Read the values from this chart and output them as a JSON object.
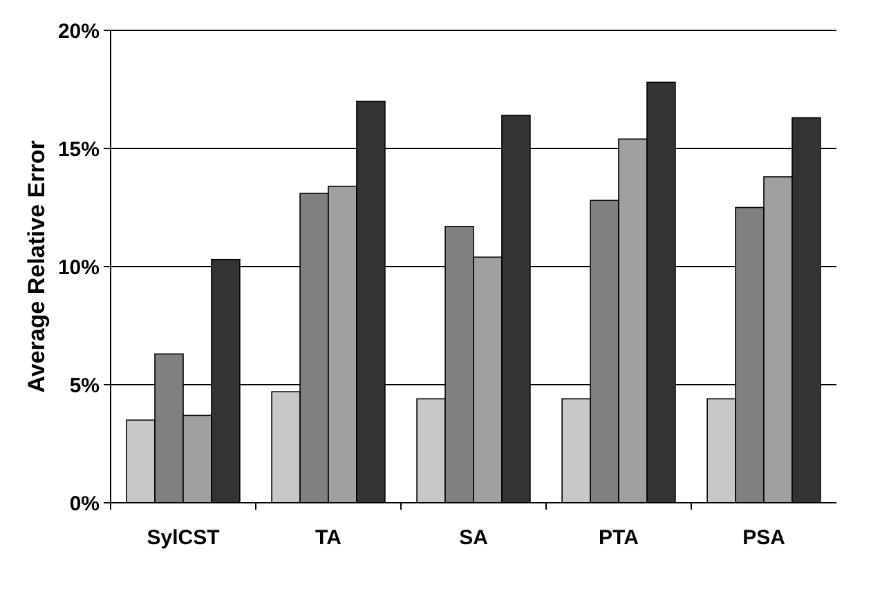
{
  "chart_data": {
    "type": "bar",
    "ylabel": "Average Relative Error",
    "categories": [
      "SylCST",
      "TA",
      "SA",
      "PTA",
      "PSA"
    ],
    "series": [
      {
        "color": "#c8c8c8",
        "values": [
          3.5,
          4.7,
          4.4,
          4.4,
          4.4
        ]
      },
      {
        "color": "#808080",
        "values": [
          6.3,
          13.1,
          11.7,
          12.8,
          12.5
        ]
      },
      {
        "color": "#a0a0a0",
        "values": [
          3.7,
          13.4,
          10.4,
          15.4,
          13.8
        ]
      },
      {
        "color": "#333333",
        "values": [
          10.3,
          17.0,
          16.4,
          17.8,
          16.3
        ]
      }
    ],
    "ylim": [
      0,
      20
    ],
    "yticks": [
      {
        "value": 0,
        "label": "0%"
      },
      {
        "value": 5,
        "label": "5%"
      },
      {
        "value": 10,
        "label": "10%"
      },
      {
        "value": 15,
        "label": "15%"
      },
      {
        "value": 20,
        "label": "20%"
      }
    ],
    "grid": "y"
  }
}
